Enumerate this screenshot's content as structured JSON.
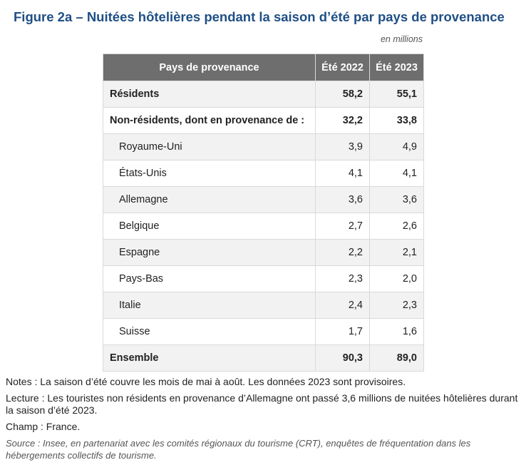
{
  "figure": {
    "title": "Figure 2a – Nuitées hôtelières pendant la saison d’été par pays de provenance",
    "unit": "en millions"
  },
  "table": {
    "headers": [
      "Pays de provenance",
      "Été 2022",
      "Été 2023"
    ],
    "rows": [
      {
        "label": "Résidents",
        "v2022": "58,2",
        "v2023": "55,1"
      },
      {
        "label": "Non-résidents, dont en provenance de :",
        "v2022": "32,2",
        "v2023": "33,8"
      },
      {
        "label": "Royaume-Uni",
        "v2022": "3,9",
        "v2023": "4,9"
      },
      {
        "label": "États-Unis",
        "v2022": "4,1",
        "v2023": "4,1"
      },
      {
        "label": "Allemagne",
        "v2022": "3,6",
        "v2023": "3,6"
      },
      {
        "label": "Belgique",
        "v2022": "2,7",
        "v2023": "2,6"
      },
      {
        "label": "Espagne",
        "v2022": "2,2",
        "v2023": "2,1"
      },
      {
        "label": "Pays-Bas",
        "v2022": "2,3",
        "v2023": "2,0"
      },
      {
        "label": "Italie",
        "v2022": "2,4",
        "v2023": "2,3"
      },
      {
        "label": "Suisse",
        "v2022": "1,7",
        "v2023": "1,6"
      },
      {
        "label": "Ensemble",
        "v2022": "90,3",
        "v2023": "89,0"
      }
    ]
  },
  "notes": {
    "notes": "Notes : La saison d’été couvre les mois de mai à août. Les données 2023 sont provisoires.",
    "lecture": "Lecture : Les touristes non résidents en provenance d’Allemagne ont passé 3,6 millions de nuitées hôtelières durant la saison d’été 2023.",
    "champ": "Champ : France.",
    "source": "Source : Insee, en partenariat avec les comités régionaux du tourisme (CRT), enquêtes de fréquentation dans les hébergements collectifs de tourisme."
  }
}
